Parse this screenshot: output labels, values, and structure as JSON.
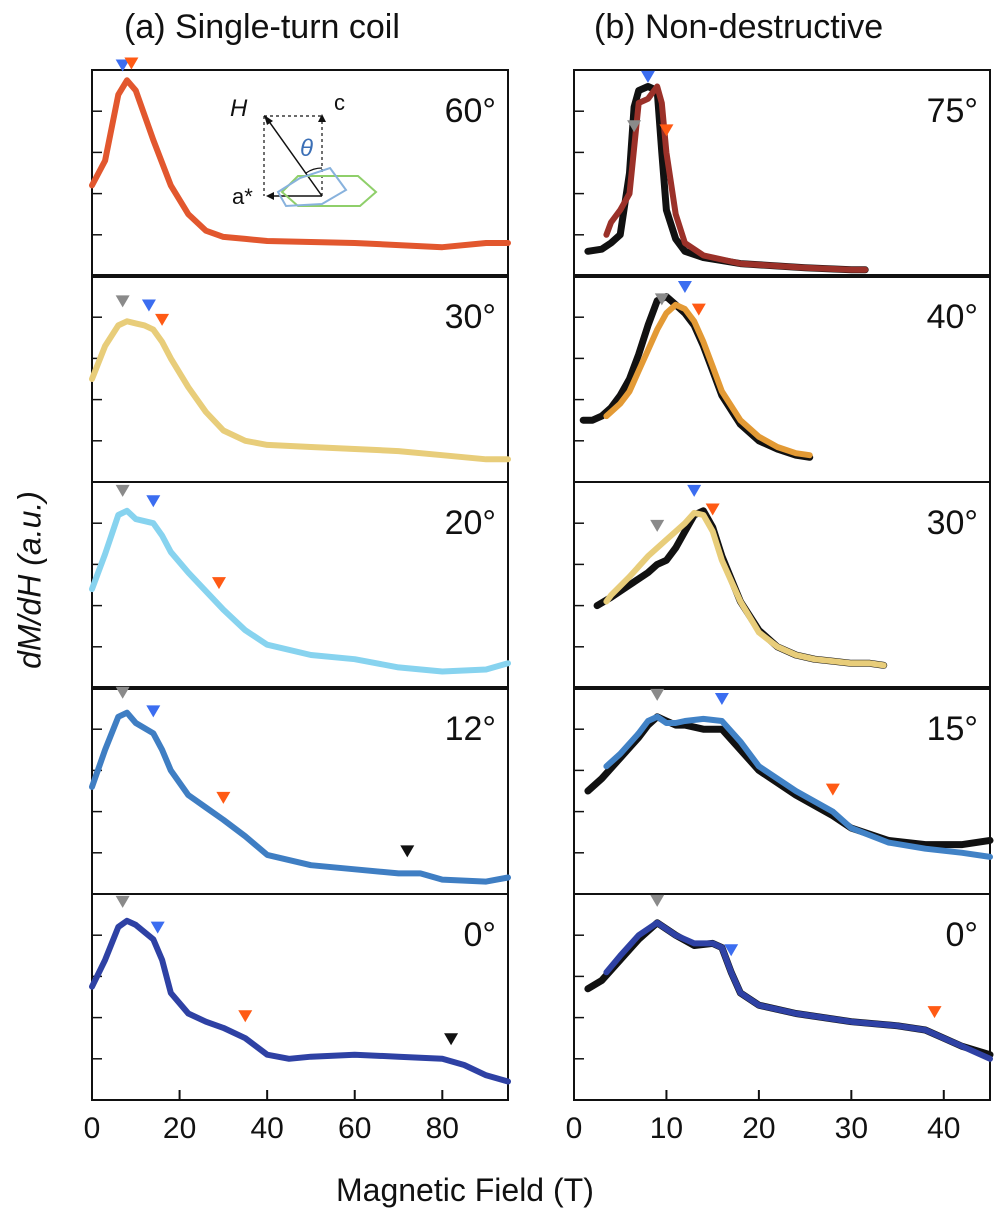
{
  "figure": {
    "title_a": "(a) Single-turn coil",
    "title_b": "(b) Non-destructive",
    "xlabel": "Magnetic Field (T)",
    "ylabel": "dM/dH (a.u.)"
  },
  "inset": {
    "H": "H",
    "c": "c",
    "a_star": "a*",
    "theta": "θ"
  },
  "colors": {
    "grey_marker": "#8a8a8a",
    "blue_marker": "#3b6df0",
    "orange_marker": "#ff5a14",
    "black_marker": "#111111",
    "measured_black": "#111111"
  },
  "chart_data": [
    {
      "type": "line",
      "panel": "(a) Single-turn coil",
      "xlim": [
        0,
        95
      ],
      "xticks": [
        0,
        20,
        40,
        60,
        80
      ],
      "rows": [
        {
          "label": "60°",
          "color": "#e2572e",
          "series": [
            {
              "x": [
                0,
                3,
                6,
                8,
                10,
                14,
                18,
                22,
                26,
                30,
                35,
                40,
                50,
                60,
                70,
                80,
                90,
                95
              ],
              "y": [
                0.44,
                0.56,
                0.88,
                0.95,
                0.9,
                0.66,
                0.44,
                0.3,
                0.22,
                0.19,
                0.18,
                0.17,
                0.165,
                0.16,
                0.15,
                0.14,
                0.16,
                0.16
              ]
            }
          ],
          "markers": [
            {
              "x": 7,
              "color": "blue"
            },
            {
              "x": 9,
              "color": "orange"
            }
          ]
        },
        {
          "label": "30°",
          "color": "#e8cd7a",
          "series": [
            {
              "x": [
                0,
                3,
                6,
                8,
                10,
                12,
                14,
                16,
                18,
                22,
                26,
                30,
                35,
                40,
                50,
                60,
                70,
                80,
                90,
                95
              ],
              "y": [
                0.5,
                0.66,
                0.76,
                0.78,
                0.77,
                0.76,
                0.74,
                0.68,
                0.6,
                0.46,
                0.34,
                0.25,
                0.2,
                0.18,
                0.17,
                0.16,
                0.15,
                0.13,
                0.11,
                0.11
              ]
            }
          ],
          "markers": [
            {
              "x": 7,
              "color": "grey"
            },
            {
              "x": 13,
              "color": "blue"
            },
            {
              "x": 16,
              "color": "orange"
            }
          ]
        },
        {
          "label": "20°",
          "color": "#87d3ef",
          "series": [
            {
              "x": [
                0,
                3,
                6,
                8,
                10,
                14,
                16,
                18,
                22,
                26,
                30,
                35,
                40,
                50,
                60,
                70,
                80,
                90,
                95
              ],
              "y": [
                0.48,
                0.65,
                0.84,
                0.86,
                0.82,
                0.8,
                0.74,
                0.66,
                0.56,
                0.47,
                0.38,
                0.28,
                0.21,
                0.16,
                0.14,
                0.1,
                0.08,
                0.09,
                0.12
              ]
            }
          ],
          "markers": [
            {
              "x": 7,
              "color": "grey"
            },
            {
              "x": 14,
              "color": "blue"
            },
            {
              "x": 29,
              "color": "orange"
            }
          ]
        },
        {
          "label": "12°",
          "color": "#3f7ec3",
          "series": [
            {
              "x": [
                0,
                3,
                6,
                8,
                10,
                14,
                16,
                18,
                22,
                26,
                30,
                35,
                40,
                50,
                60,
                70,
                75,
                80,
                90,
                95
              ],
              "y": [
                0.52,
                0.7,
                0.86,
                0.88,
                0.83,
                0.78,
                0.7,
                0.6,
                0.48,
                0.42,
                0.36,
                0.28,
                0.19,
                0.14,
                0.12,
                0.1,
                0.1,
                0.07,
                0.06,
                0.08
              ]
            }
          ],
          "markers": [
            {
              "x": 7,
              "color": "grey"
            },
            {
              "x": 14,
              "color": "blue"
            },
            {
              "x": 30,
              "color": "orange"
            },
            {
              "x": 72,
              "color": "black"
            }
          ]
        },
        {
          "label": "0°",
          "color": "#2e41a4",
          "series": [
            {
              "x": [
                0,
                3,
                6,
                8,
                10,
                14,
                16,
                18,
                22,
                26,
                30,
                35,
                40,
                45,
                50,
                60,
                70,
                80,
                85,
                90,
                95
              ],
              "y": [
                0.55,
                0.68,
                0.84,
                0.87,
                0.85,
                0.78,
                0.68,
                0.52,
                0.42,
                0.38,
                0.35,
                0.3,
                0.22,
                0.2,
                0.21,
                0.22,
                0.21,
                0.2,
                0.17,
                0.12,
                0.09
              ]
            }
          ],
          "markers": [
            {
              "x": 7,
              "color": "grey"
            },
            {
              "x": 15,
              "color": "blue"
            },
            {
              "x": 35,
              "color": "orange"
            },
            {
              "x": 82,
              "color": "black"
            }
          ]
        }
      ]
    },
    {
      "type": "line",
      "panel": "(b) Non-destructive",
      "xlim": [
        0,
        45
      ],
      "xticks": [
        0,
        10,
        20,
        30,
        40
      ],
      "rows": [
        {
          "label": "75°",
          "color": "#9b3129",
          "series": [
            {
              "x": [
                1.5,
                3,
                4,
                5,
                6,
                6.5,
                7,
                8,
                9,
                9.5,
                10,
                11,
                12,
                14,
                18,
                25,
                30,
                31.5
              ],
              "y": [
                0.12,
                0.13,
                0.16,
                0.2,
                0.5,
                0.82,
                0.9,
                0.92,
                0.9,
                0.6,
                0.32,
                0.18,
                0.12,
                0.09,
                0.06,
                0.04,
                0.03,
                0.03
              ],
              "measured": true
            },
            {
              "x": [
                3.5,
                4,
                5,
                6,
                7,
                8,
                9,
                9.5,
                10,
                11,
                12,
                14,
                18,
                25,
                30,
                31.5
              ],
              "y": [
                0.2,
                0.26,
                0.32,
                0.4,
                0.84,
                0.86,
                0.92,
                0.84,
                0.6,
                0.3,
                0.16,
                0.1,
                0.06,
                0.04,
                0.03,
                0.03
              ]
            }
          ],
          "markers": [
            {
              "x": 6.5,
              "color": "grey"
            },
            {
              "x": 8,
              "color": "blue"
            },
            {
              "x": 10,
              "color": "orange"
            }
          ]
        },
        {
          "label": "40°",
          "color": "#e39a35",
          "series": [
            {
              "x": [
                1,
                2,
                3,
                4,
                5,
                6,
                7,
                8,
                9,
                10,
                11,
                12,
                13,
                14,
                15,
                16,
                18,
                20,
                22,
                24,
                25.5
              ],
              "y": [
                0.3,
                0.3,
                0.32,
                0.36,
                0.42,
                0.5,
                0.62,
                0.76,
                0.88,
                0.9,
                0.86,
                0.82,
                0.76,
                0.66,
                0.54,
                0.42,
                0.28,
                0.2,
                0.16,
                0.13,
                0.12
              ],
              "measured": true
            },
            {
              "x": [
                3.5,
                4,
                5,
                6,
                7,
                8,
                9,
                10,
                11,
                12,
                13,
                14,
                15,
                16,
                18,
                20,
                22,
                24,
                25.5
              ],
              "y": [
                0.32,
                0.34,
                0.38,
                0.44,
                0.54,
                0.64,
                0.74,
                0.82,
                0.86,
                0.84,
                0.78,
                0.68,
                0.56,
                0.44,
                0.3,
                0.22,
                0.17,
                0.14,
                0.13
              ]
            }
          ],
          "markers": [
            {
              "x": 9.5,
              "color": "grey"
            },
            {
              "x": 12,
              "color": "blue"
            },
            {
              "x": 13.5,
              "color": "orange"
            }
          ]
        },
        {
          "label": "30°",
          "color": "#e8cd7a",
          "series": [
            {
              "x": [
                2.5,
                4,
                6,
                8,
                9,
                10,
                11,
                12,
                13,
                14,
                15,
                16,
                18,
                20,
                22,
                24,
                26,
                28,
                30,
                32,
                33.5
              ],
              "y": [
                0.4,
                0.44,
                0.5,
                0.56,
                0.6,
                0.62,
                0.68,
                0.76,
                0.84,
                0.86,
                0.78,
                0.64,
                0.42,
                0.28,
                0.2,
                0.16,
                0.14,
                0.13,
                0.12,
                0.12,
                0.11
              ],
              "measured": true
            },
            {
              "x": [
                3.5,
                4,
                6,
                8,
                10,
                12,
                13,
                14,
                15,
                16,
                18,
                20,
                22,
                24,
                26,
                28,
                30,
                32,
                33.5
              ],
              "y": [
                0.42,
                0.45,
                0.54,
                0.64,
                0.72,
                0.8,
                0.85,
                0.84,
                0.76,
                0.62,
                0.42,
                0.27,
                0.2,
                0.16,
                0.14,
                0.13,
                0.12,
                0.12,
                0.11
              ]
            }
          ],
          "markers": [
            {
              "x": 9,
              "color": "grey"
            },
            {
              "x": 13,
              "color": "blue"
            },
            {
              "x": 15,
              "color": "orange"
            }
          ]
        },
        {
          "label": "15°",
          "color": "#4182c6",
          "series": [
            {
              "x": [
                1.5,
                3,
                5,
                7,
                8,
                9,
                10,
                11,
                12,
                14,
                16,
                18,
                20,
                24,
                28,
                30,
                34,
                38,
                42,
                45
              ],
              "y": [
                0.5,
                0.56,
                0.66,
                0.76,
                0.82,
                0.86,
                0.84,
                0.82,
                0.82,
                0.8,
                0.8,
                0.7,
                0.6,
                0.48,
                0.38,
                0.32,
                0.26,
                0.24,
                0.24,
                0.26
              ],
              "measured": true
            },
            {
              "x": [
                3.5,
                5,
                7,
                8,
                9,
                10,
                11,
                12,
                14,
                16,
                18,
                20,
                24,
                28,
                30,
                34,
                38,
                42,
                45
              ],
              "y": [
                0.62,
                0.68,
                0.78,
                0.84,
                0.86,
                0.83,
                0.83,
                0.84,
                0.85,
                0.84,
                0.74,
                0.62,
                0.5,
                0.4,
                0.32,
                0.25,
                0.22,
                0.2,
                0.18
              ]
            }
          ],
          "markers": [
            {
              "x": 9,
              "color": "grey"
            },
            {
              "x": 16,
              "color": "blue"
            },
            {
              "x": 28,
              "color": "orange"
            }
          ]
        },
        {
          "label": "0°",
          "color": "#2e41a4",
          "series": [
            {
              "x": [
                1.5,
                3,
                5,
                7,
                9,
                11,
                13,
                15,
                16,
                17,
                18,
                20,
                24,
                30,
                35,
                38,
                40,
                42,
                45
              ],
              "y": [
                0.54,
                0.58,
                0.68,
                0.78,
                0.86,
                0.8,
                0.75,
                0.76,
                0.74,
                0.62,
                0.52,
                0.46,
                0.42,
                0.38,
                0.36,
                0.34,
                0.3,
                0.26,
                0.22
              ],
              "measured": true
            },
            {
              "x": [
                3.5,
                5,
                7,
                9,
                11,
                13,
                15,
                16,
                17,
                18,
                20,
                24,
                30,
                35,
                38,
                40,
                42,
                45
              ],
              "y": [
                0.62,
                0.7,
                0.8,
                0.86,
                0.8,
                0.76,
                0.76,
                0.74,
                0.62,
                0.52,
                0.46,
                0.42,
                0.38,
                0.36,
                0.34,
                0.3,
                0.26,
                0.2
              ]
            }
          ],
          "markers": [
            {
              "x": 9,
              "color": "grey"
            },
            {
              "x": 17,
              "color": "blue"
            },
            {
              "x": 39,
              "color": "orange"
            }
          ]
        }
      ]
    }
  ]
}
